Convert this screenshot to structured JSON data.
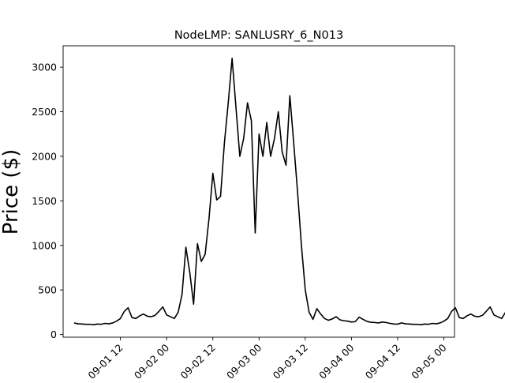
{
  "chart_data": {
    "type": "line",
    "title": "NodeLMP: SANLUSRY_6_N013",
    "xlabel": "",
    "ylabel": "Price ($)",
    "ylim": [
      -30,
      3240
    ],
    "yticks": [
      0,
      500,
      1000,
      1500,
      2000,
      2500,
      3000
    ],
    "xlim": [
      -0.12,
      4.115
    ],
    "xtick_positions": [
      0.5,
      1.0,
      1.5,
      2.0,
      2.5,
      3.0,
      3.5,
      4.0
    ],
    "xtick_labels": [
      "09-01 12",
      "09-02 00",
      "09-02 12",
      "09-03 00",
      "09-03 12",
      "09-04 00",
      "09-04 12",
      "09-05 00"
    ],
    "grid": false,
    "legend": "none",
    "line_color": "#000000",
    "series": [
      {
        "x_start": 0.0,
        "x_step": 0.04167,
        "day_profile": [
          130,
          120,
          118,
          115,
          115,
          110,
          118,
          115,
          125,
          120,
          130,
          150,
          180,
          260,
          300,
          190,
          180,
          210,
          230,
          205,
          200,
          215,
          260,
          310,
          220,
          200,
          180,
          250,
          450,
          980,
          700,
          340,
          1020,
          820,
          900,
          1300,
          1810,
          1510,
          1550,
          2150,
          2600,
          3100,
          2550,
          2000,
          2200,
          2600,
          2400,
          1140,
          2250,
          2000,
          2380,
          2000,
          2200,
          2500,
          2050,
          1900,
          2680,
          2150,
          1600,
          1000,
          500,
          250,
          170,
          290,
          230,
          180,
          160,
          175,
          200,
          165,
          155,
          150,
          140,
          145,
          195,
          170,
          148,
          138,
          135,
          130,
          140,
          135,
          125,
          118,
          117
        ],
        "repeats": 4,
        "end_values": [
          150,
          180,
          130
        ]
      }
    ]
  }
}
